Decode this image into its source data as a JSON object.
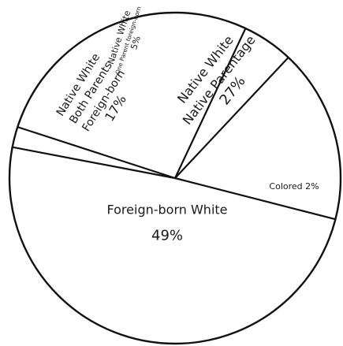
{
  "chart_data": {
    "type": "pie",
    "title": "",
    "slices": [
      {
        "lines": [
          "Native White",
          "Native Parentage",
          "27%"
        ],
        "value": 27
      },
      {
        "lines": [
          "Native White",
          "One Parent foreign-born",
          "5%"
        ],
        "value": 5
      },
      {
        "lines": [
          "Native White",
          "Both Parents",
          "Foreign-born",
          "17%"
        ],
        "value": 17
      },
      {
        "lines": [
          "Foreign-born White",
          "49%"
        ],
        "value": 49
      },
      {
        "lines": [
          "Colored 2%"
        ],
        "value": 2
      }
    ],
    "colors": {
      "ink": "#111111",
      "fill": "#ffffff"
    }
  }
}
